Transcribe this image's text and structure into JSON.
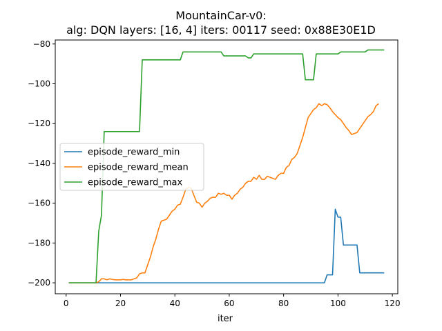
{
  "chart_data": {
    "type": "line",
    "title_line1": "MountainCar-v0:",
    "title_line2": "alg: DQN layers: [16, 4] iters: 00117 seed: 0x88E30E1D",
    "xlabel": "iter",
    "ylabel": "",
    "xlim": [
      -4,
      122
    ],
    "ylim": [
      -205.5,
      -78
    ],
    "xticks": [
      0,
      20,
      40,
      60,
      80,
      100,
      120
    ],
    "yticks": [
      -200,
      -180,
      -160,
      -140,
      -120,
      -100,
      -80
    ],
    "grid": false,
    "legend_placement": "center-left",
    "series": [
      {
        "name": "episode_reward_min",
        "color": "#1f77b4",
        "points": [
          [
            1,
            -200
          ],
          [
            95,
            -200
          ],
          [
            96,
            -196
          ],
          [
            98,
            -196
          ],
          [
            99,
            -163
          ],
          [
            100,
            -167
          ],
          [
            101,
            -167
          ],
          [
            102,
            -181
          ],
          [
            107,
            -181
          ],
          [
            108,
            -195
          ],
          [
            117,
            -195
          ]
        ]
      },
      {
        "name": "episode_reward_mean",
        "color": "#ff7f0e",
        "points": [
          [
            1,
            -200
          ],
          [
            11,
            -200
          ],
          [
            12,
            -199.5
          ],
          [
            13,
            -198
          ],
          [
            14,
            -198
          ],
          [
            15,
            -198.5
          ],
          [
            16,
            -198
          ],
          [
            17,
            -198.3
          ],
          [
            18,
            -198.5
          ],
          [
            20,
            -198.5
          ],
          [
            21,
            -198.3
          ],
          [
            22,
            -198.5
          ],
          [
            24,
            -198.5
          ],
          [
            25,
            -198
          ],
          [
            26,
            -197.5
          ],
          [
            27,
            -195.5
          ],
          [
            28,
            -195
          ],
          [
            29,
            -195
          ],
          [
            30,
            -191
          ],
          [
            31,
            -187
          ],
          [
            32,
            -182
          ],
          [
            33,
            -178
          ],
          [
            34,
            -173
          ],
          [
            35,
            -169
          ],
          [
            36,
            -168.5
          ],
          [
            37,
            -168
          ],
          [
            38,
            -166
          ],
          [
            39,
            -164
          ],
          [
            40,
            -163
          ],
          [
            41,
            -161
          ],
          [
            42,
            -160.5
          ],
          [
            43,
            -157
          ],
          [
            44,
            -153
          ],
          [
            45,
            -152
          ],
          [
            46,
            -152.5
          ],
          [
            47,
            -156
          ],
          [
            48,
            -159.5
          ],
          [
            49,
            -160
          ],
          [
            50,
            -162
          ],
          [
            51,
            -160
          ],
          [
            52,
            -159
          ],
          [
            53,
            -157.5
          ],
          [
            54,
            -157
          ],
          [
            55,
            -157
          ],
          [
            56,
            -155
          ],
          [
            57,
            -155.5
          ],
          [
            58,
            -155
          ],
          [
            59,
            -156
          ],
          [
            60,
            -156
          ],
          [
            61,
            -158
          ],
          [
            62,
            -156
          ],
          [
            63,
            -155
          ],
          [
            64,
            -153
          ],
          [
            65,
            -152
          ],
          [
            66,
            -150
          ],
          [
            67,
            -149
          ],
          [
            68,
            -149
          ],
          [
            69,
            -147
          ],
          [
            70,
            -148
          ],
          [
            71,
            -146
          ],
          [
            72,
            -148
          ],
          [
            73,
            -148
          ],
          [
            74,
            -146.5
          ],
          [
            75,
            -147
          ],
          [
            76,
            -147.5
          ],
          [
            77,
            -148
          ],
          [
            78,
            -146
          ],
          [
            79,
            -145
          ],
          [
            80,
            -145
          ],
          [
            81,
            -142
          ],
          [
            82,
            -141
          ],
          [
            83,
            -138
          ],
          [
            84,
            -137
          ],
          [
            85,
            -135
          ],
          [
            86,
            -131
          ],
          [
            87,
            -127
          ],
          [
            88,
            -122
          ],
          [
            89,
            -117
          ],
          [
            90,
            -115
          ],
          [
            91,
            -113
          ],
          [
            92,
            -112
          ],
          [
            93,
            -110
          ],
          [
            94,
            -111
          ],
          [
            95,
            -110
          ],
          [
            96,
            -110.5
          ],
          [
            97,
            -112
          ],
          [
            98,
            -114
          ],
          [
            99,
            -115.5
          ],
          [
            100,
            -117
          ],
          [
            101,
            -118
          ],
          [
            102,
            -120
          ],
          [
            103,
            -122
          ],
          [
            104,
            -123.5
          ],
          [
            105,
            -125.5
          ],
          [
            106,
            -125
          ],
          [
            107,
            -124.5
          ],
          [
            108,
            -122.5
          ],
          [
            109,
            -120.5
          ],
          [
            110,
            -118.5
          ],
          [
            111,
            -116.5
          ],
          [
            112,
            -115.5
          ],
          [
            113,
            -114
          ],
          [
            114,
            -111
          ],
          [
            115,
            -110
          ]
        ]
      },
      {
        "name": "episode_reward_max",
        "color": "#2ca02c",
        "points": [
          [
            1,
            -200
          ],
          [
            11,
            -200
          ],
          [
            12,
            -174
          ],
          [
            13,
            -166
          ],
          [
            14,
            -124
          ],
          [
            27,
            -124
          ],
          [
            28,
            -88
          ],
          [
            42,
            -88
          ],
          [
            43,
            -84
          ],
          [
            57,
            -84
          ],
          [
            58,
            -86
          ],
          [
            66,
            -86
          ],
          [
            67,
            -87
          ],
          [
            68,
            -87
          ],
          [
            69,
            -85
          ],
          [
            87,
            -85
          ],
          [
            88,
            -98
          ],
          [
            91,
            -98
          ],
          [
            92,
            -85
          ],
          [
            100,
            -85
          ],
          [
            101,
            -84
          ],
          [
            110,
            -84
          ],
          [
            111,
            -83
          ],
          [
            117,
            -83
          ]
        ]
      }
    ]
  }
}
